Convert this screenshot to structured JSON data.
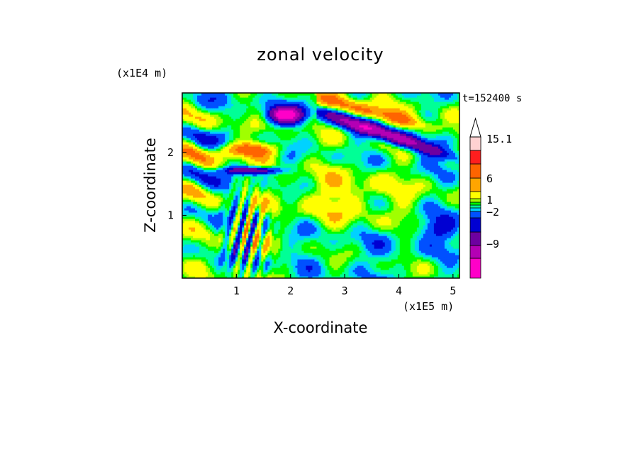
{
  "chart_data": {
    "type": "heatmap",
    "title": "zonal velocity",
    "xlabel": "X-coordinate",
    "ylabel": "Z-coordinate",
    "x_unit": "(x1E5 m)",
    "y_unit": "(x1E4 m)",
    "time_label": "t=152400 s",
    "xlim": [
      0,
      5.12
    ],
    "ylim": [
      0,
      2.95
    ],
    "x_ticks": [
      {
        "value": 1,
        "label": "1"
      },
      {
        "value": 2,
        "label": "2"
      },
      {
        "value": 3,
        "label": "3"
      },
      {
        "value": 4,
        "label": "4"
      },
      {
        "value": 5,
        "label": "5"
      }
    ],
    "y_ticks": [
      {
        "value": 1,
        "label": "1"
      },
      {
        "value": 2,
        "label": "2"
      }
    ],
    "colorbar": {
      "levels": [
        -15,
        -12,
        -9,
        -6,
        -4,
        -2,
        -1,
        0,
        1,
        2,
        4,
        6,
        9,
        12,
        15.1
      ],
      "colors": [
        "#ff00c8",
        "#b400b4",
        "#6e00a0",
        "#0000d2",
        "#0050ff",
        "#00d2ff",
        "#00ff96",
        "#00ff00",
        "#a0ff00",
        "#ffff00",
        "#ffa500",
        "#ff6400",
        "#ff1e1e",
        "#ff9696",
        "#ffd2d2"
      ],
      "labeled": [
        {
          "value": 15.1,
          "label": "15.1"
        },
        {
          "value": 6,
          "label": "6"
        },
        {
          "value": 1,
          "label": "1"
        },
        {
          "value": -2,
          "label": "−2"
        },
        {
          "value": -9,
          "label": "−9"
        }
      ]
    }
  }
}
